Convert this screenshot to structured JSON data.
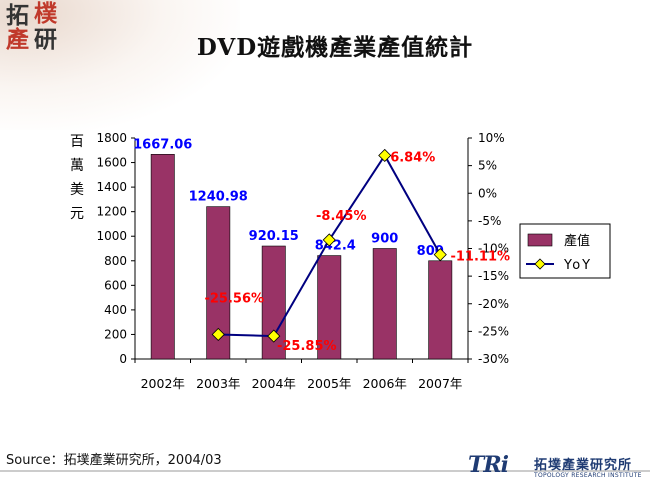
{
  "header": {
    "title": "DVD遊戲機產業產值統計",
    "logo_chars": [
      "拓",
      "樸",
      "產",
      "研"
    ]
  },
  "footer": {
    "source": "Source：拓墣產業研究所，2004/03",
    "logo_mark": "TRi",
    "logo_cn": "拓墣產業研究所",
    "logo_en": "TOPOLOGY RESEARCH INSTITUTE"
  },
  "colors": {
    "bar": "#993366",
    "yoy_line": "#000080",
    "yoy_marker": "#ffff00",
    "value_label": "#0000ff",
    "yoy_label": "#ff0000",
    "logo_red": "#c0392b",
    "logo_dark": "#333333"
  },
  "chart_data": {
    "type": "bar",
    "categories": [
      "2002年",
      "2003年",
      "2004年",
      "2005年",
      "2006年",
      "2007年"
    ],
    "series": [
      {
        "name": "產值",
        "type": "bar",
        "axis": "left",
        "values": [
          1667.06,
          1240.98,
          920.15,
          842.4,
          900,
          800
        ],
        "labels": [
          "1667.06",
          "1240.98",
          "920.15",
          "842.4",
          "900",
          "800"
        ]
      },
      {
        "name": "YoY",
        "type": "line",
        "axis": "right",
        "values": [
          null,
          -25.56,
          -25.85,
          -8.45,
          6.84,
          -11.11
        ],
        "labels": [
          "",
          "-25.56%",
          "-25.85%",
          "-8.45%",
          "6.84%",
          "-11.11%"
        ]
      }
    ],
    "ylabel": "百萬美元",
    "ylim": [
      0,
      1800
    ],
    "yticks": [
      "0",
      "200",
      "400",
      "600",
      "800",
      "1000",
      "1200",
      "1400",
      "1600",
      "1800"
    ],
    "y2lim": [
      -30,
      10
    ],
    "y2ticks": [
      "-30%",
      "-25%",
      "-20%",
      "-15%",
      "-10%",
      "-5%",
      "0%",
      "5%",
      "10%"
    ],
    "legend_position": "right",
    "legend": [
      "產值",
      "YoY"
    ],
    "grid": false
  }
}
